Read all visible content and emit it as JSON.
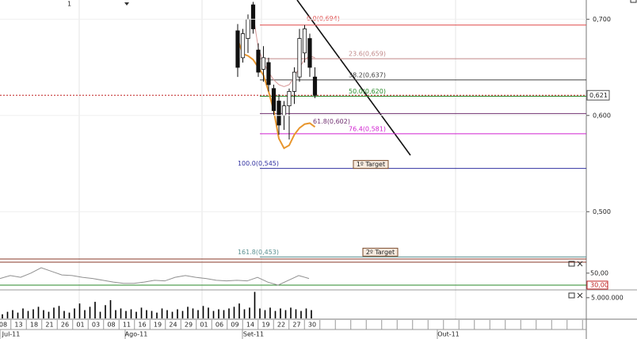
{
  "chart_data": [
    {
      "type": "candlestick",
      "open": [
        0.688,
        0.66,
        0.68,
        0.715,
        0.668,
        0.648,
        0.655,
        0.628,
        0.615,
        0.6,
        0.61,
        0.625,
        0.64,
        0.665,
        0.68,
        0.64
      ],
      "high": [
        0.695,
        0.69,
        0.705,
        0.718,
        0.675,
        0.672,
        0.66,
        0.632,
        0.622,
        0.615,
        0.628,
        0.65,
        0.69,
        0.694,
        0.685,
        0.65
      ],
      "low": [
        0.64,
        0.655,
        0.665,
        0.685,
        0.64,
        0.635,
        0.625,
        0.6,
        0.58,
        0.585,
        0.575,
        0.612,
        0.635,
        0.655,
        0.64,
        0.618
      ],
      "close": [
        0.65,
        0.685,
        0.7,
        0.69,
        0.645,
        0.66,
        0.632,
        0.605,
        0.59,
        0.61,
        0.625,
        0.645,
        0.68,
        0.69,
        0.65,
        0.621
      ],
      "ylim": [
        0.45,
        0.72
      ],
      "yticks": [
        {
          "value": 0.7,
          "label": "0,700"
        },
        {
          "value": 0.6,
          "label": "0,600"
        },
        {
          "value": 0.5,
          "label": "0,500"
        }
      ],
      "last_price": {
        "value": 0.621,
        "label": "0,621"
      },
      "moving_averages": [
        {
          "color": "#e8962e",
          "values": [
            0.679,
            0.664,
            0.662,
            0.658,
            0.65,
            0.642,
            0.625,
            0.605,
            0.576,
            0.566,
            0.569,
            0.58,
            0.587,
            0.591,
            0.592,
            0.588
          ]
        },
        {
          "color": "#d89a9a",
          "values": [
            null,
            null,
            null,
            0.705,
            0.67,
            0.655,
            0.645,
            0.637,
            0.632,
            0.63,
            0.632,
            0.64,
            0.65,
            0.658,
            0.662,
            0.66
          ]
        }
      ],
      "fibonacci": [
        {
          "label": "0.0(0,694)",
          "value": 0.694,
          "color": "#e05050"
        },
        {
          "label": "23.6(0,659)",
          "value": 0.659,
          "color": "#c08888"
        },
        {
          "label": "38.2(0,637)",
          "value": 0.637,
          "color": "#404040"
        },
        {
          "label": "50.0(0,620)",
          "value": 0.62,
          "color": "#2a8a2a"
        },
        {
          "label": "61.8(0,602)",
          "value": 0.602,
          "color": "#703070"
        },
        {
          "label": "76.4(0,581)",
          "value": 0.581,
          "color": "#d020d0"
        },
        {
          "label": "100.0(0,545)",
          "value": 0.545,
          "color": "#3030a0"
        },
        {
          "label": "161.8(0,453)",
          "value": 0.453,
          "color": "#5a9090"
        }
      ],
      "targets": [
        "1º Target",
        "2º Target"
      ]
    },
    {
      "type": "line",
      "values": [
        41,
        46,
        43,
        50,
        59,
        53,
        47,
        46,
        43,
        41,
        38,
        35,
        33,
        33,
        35,
        38,
        37,
        43,
        46,
        43,
        41,
        38,
        37,
        38,
        37,
        43,
        35,
        30,
        38,
        46,
        41
      ],
      "ylim": [
        22,
        67
      ],
      "yticks": [
        {
          "value": 50,
          "label": "50,00"
        },
        {
          "value": 30,
          "label": "30,00"
        }
      ],
      "color": "#909090"
    },
    {
      "type": "bar",
      "values": [
        1000000,
        1600000,
        2000000,
        1400000,
        2400000,
        1800000,
        2200000,
        2800000,
        2000000,
        1600000,
        2600000,
        3000000,
        1800000,
        1400000,
        2400000,
        3600000,
        2000000,
        2800000,
        4000000,
        1600000,
        3200000,
        4400000,
        2000000,
        2400000,
        1800000,
        2200000,
        1600000,
        2600000,
        2000000,
        1800000,
        1400000,
        2400000,
        2000000,
        1600000,
        2200000,
        1800000,
        2800000,
        2400000,
        2000000,
        3000000,
        2600000,
        1800000,
        2200000,
        2000000,
        2400000,
        2800000,
        3600000,
        2200000,
        2600000,
        6400000,
        2400000,
        2000000,
        2600000,
        1800000,
        2400000,
        2000000,
        2600000,
        2200000,
        1800000,
        2400000,
        2000000
      ],
      "ylim": [
        0,
        6500000
      ],
      "yticks": [
        {
          "value": 5000000,
          "label": "5.000.000"
        }
      ],
      "color": "#000000"
    }
  ],
  "x_axis": {
    "categories": [
      "08",
      "13",
      "18",
      "21",
      "26",
      "01",
      "03",
      "08",
      "11",
      "16",
      "19",
      "24",
      "29",
      "01",
      "06",
      "09",
      "14",
      "19",
      "22",
      "27",
      "30"
    ],
    "months": [
      "Jul-11",
      "Ago-11",
      "Set-11",
      "Out-11"
    ]
  },
  "header": {
    "text": "1"
  }
}
